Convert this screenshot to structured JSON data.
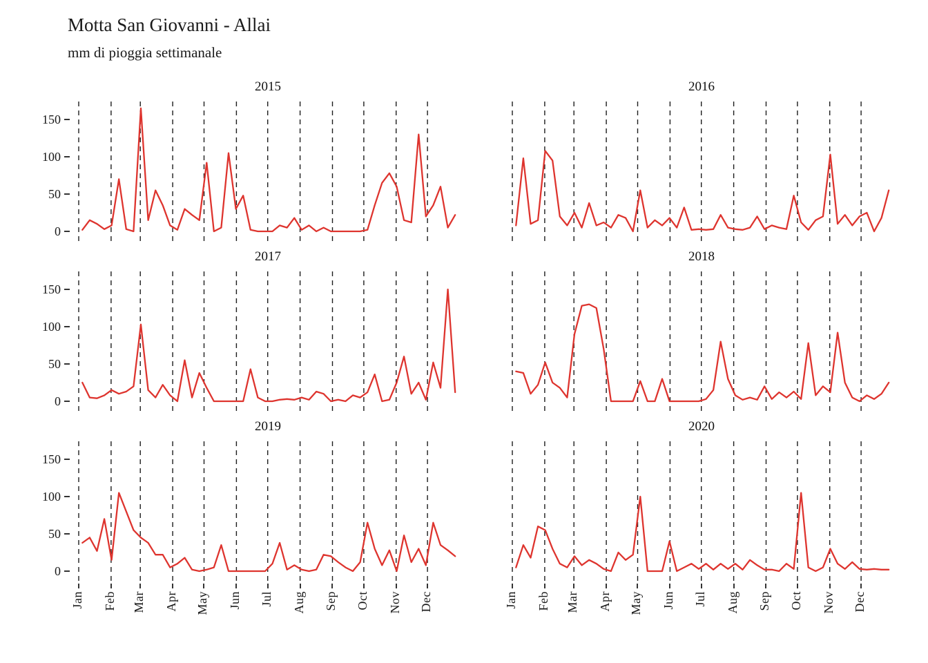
{
  "header": {
    "title": "Motta San Giovanni - Allai",
    "subtitle": "mm di pioggia settimanale"
  },
  "style": {
    "line_color": "#DE342E",
    "gridline_color": "#1c1c1c",
    "tick_color": "#333333",
    "text_color": "#1a1a1a"
  },
  "chart_data": {
    "type": "line",
    "title": "Motta San Giovanni - Allai",
    "subtitle": "mm di pioggia settimanale",
    "xlabel": "",
    "ylabel": "mm di pioggia settimanale",
    "x_unit": "week of year (52 weekly totals per facet)",
    "ylim": [
      0,
      170
    ],
    "yticks": [
      0,
      50,
      100,
      150
    ],
    "grid": "dashed vertical lines at each month start",
    "legend": "none",
    "month_labels": [
      "Jan",
      "Feb",
      "Mar",
      "Apr",
      "May",
      "Jun",
      "Jul",
      "Aug",
      "Sep",
      "Oct",
      "Nov",
      "Dec"
    ],
    "facets": [
      {
        "year": "2015",
        "values": [
          2,
          15,
          10,
          3,
          8,
          70,
          3,
          0,
          165,
          15,
          55,
          35,
          8,
          2,
          30,
          22,
          15,
          92,
          0,
          5,
          105,
          30,
          48,
          2,
          0,
          0,
          0,
          8,
          5,
          18,
          2,
          8,
          0,
          5,
          0,
          0,
          0,
          0,
          0,
          2,
          35,
          65,
          78,
          60,
          15,
          12,
          130,
          20,
          35,
          60,
          5,
          22
        ]
      },
      {
        "year": "2016",
        "values": [
          8,
          98,
          10,
          15,
          108,
          95,
          20,
          8,
          25,
          5,
          38,
          8,
          12,
          5,
          22,
          18,
          0,
          55,
          5,
          15,
          8,
          18,
          5,
          32,
          2,
          3,
          2,
          3,
          22,
          5,
          3,
          2,
          5,
          20,
          3,
          8,
          5,
          3,
          48,
          12,
          2,
          15,
          20,
          103,
          10,
          22,
          8,
          20,
          25,
          0,
          18,
          55
        ]
      },
      {
        "year": "2017",
        "values": [
          25,
          5,
          4,
          8,
          15,
          10,
          13,
          20,
          103,
          15,
          5,
          22,
          8,
          0,
          55,
          5,
          38,
          18,
          0,
          0,
          0,
          0,
          0,
          43,
          5,
          0,
          0,
          2,
          3,
          2,
          5,
          2,
          13,
          10,
          0,
          2,
          0,
          8,
          5,
          12,
          36,
          0,
          2,
          25,
          60,
          10,
          25,
          2,
          52,
          18,
          150,
          12
        ]
      },
      {
        "year": "2018",
        "values": [
          40,
          38,
          10,
          22,
          52,
          25,
          18,
          5,
          90,
          128,
          130,
          125,
          70,
          0,
          0,
          0,
          0,
          27,
          0,
          0,
          30,
          0,
          0,
          0,
          0,
          0,
          3,
          15,
          80,
          30,
          8,
          2,
          5,
          2,
          20,
          3,
          12,
          5,
          13,
          3,
          78,
          8,
          20,
          12,
          92,
          25,
          5,
          0,
          8,
          3,
          10,
          25
        ]
      },
      {
        "year": "2019",
        "values": [
          38,
          45,
          27,
          70,
          15,
          105,
          80,
          55,
          45,
          38,
          22,
          22,
          5,
          10,
          18,
          2,
          0,
          2,
          5,
          35,
          0,
          0,
          0,
          0,
          0,
          0,
          10,
          38,
          2,
          8,
          2,
          0,
          2,
          22,
          20,
          12,
          5,
          0,
          12,
          65,
          30,
          8,
          28,
          0,
          48,
          12,
          30,
          8,
          65,
          35,
          28,
          20
        ]
      },
      {
        "year": "2020",
        "values": [
          5,
          35,
          18,
          60,
          55,
          30,
          10,
          5,
          20,
          8,
          15,
          10,
          3,
          0,
          25,
          15,
          22,
          100,
          0,
          0,
          0,
          40,
          0,
          5,
          10,
          3,
          10,
          2,
          10,
          3,
          10,
          2,
          15,
          8,
          2,
          2,
          0,
          10,
          3,
          105,
          5,
          0,
          5,
          30,
          10,
          3,
          12,
          3,
          2,
          3,
          2,
          2
        ]
      }
    ]
  }
}
